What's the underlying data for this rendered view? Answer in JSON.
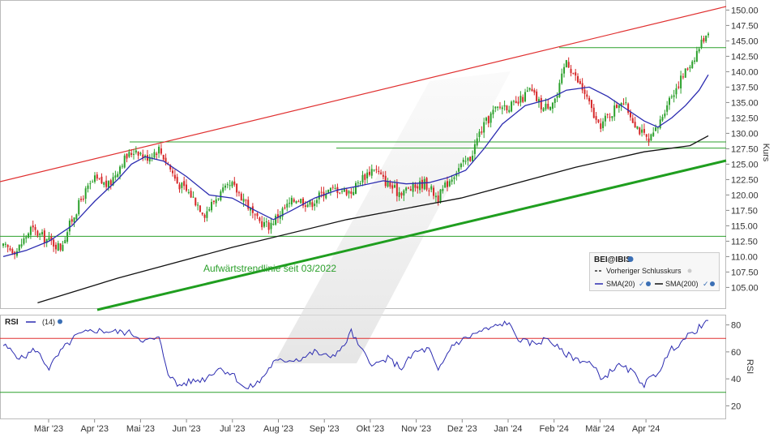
{
  "chart_data": [
    {
      "type": "candlestick",
      "title": "",
      "instrument": "BEI@IBIS",
      "ylabel": "Kurs",
      "ylim": [
        101.5,
        151.5
      ],
      "y_ticks": [
        105.0,
        107.5,
        110.0,
        112.5,
        115.0,
        117.5,
        120.0,
        122.5,
        125.0,
        127.5,
        130.0,
        132.5,
        135.0,
        137.5,
        140.0,
        142.5,
        145.0,
        147.5,
        150.0
      ],
      "x_months": [
        "Mär '23",
        "Apr '23",
        "Mai '23",
        "Jun '23",
        "Jul '23",
        "Aug '23",
        "Sep '23",
        "Okt '23",
        "Nov '23",
        "Dez '23",
        "Jan '24",
        "Feb '24",
        "Mär '24",
        "Apr '24"
      ],
      "legend": {
        "prev_close": "Vorheriger Schlusskurs",
        "sma20": "SMA(20)",
        "sma200": "SMA(200)"
      },
      "annotation": "Aufwärtstrendlinie seit 03/2022",
      "horizontal_levels": [
        113.3,
        127.6,
        128.6
      ],
      "resistance_level": 143.9,
      "close_path": [
        [
          0,
          111.5
        ],
        [
          6,
          111.0
        ],
        [
          12,
          114.5
        ],
        [
          18,
          113.0
        ],
        [
          25,
          111.5
        ],
        [
          30,
          116.0
        ],
        [
          35,
          120.0
        ],
        [
          40,
          122.5
        ],
        [
          46,
          121.5
        ],
        [
          52,
          125.5
        ],
        [
          58,
          127.5
        ],
        [
          62,
          126.0
        ],
        [
          68,
          127.5
        ],
        [
          72,
          125.0
        ],
        [
          76,
          122.0
        ],
        [
          82,
          120.0
        ],
        [
          88,
          117.0
        ],
        [
          94,
          120.0
        ],
        [
          100,
          121.5
        ],
        [
          106,
          119.0
        ],
        [
          110,
          116.0
        ],
        [
          116,
          115.0
        ],
        [
          122,
          117.5
        ],
        [
          128,
          119.5
        ],
        [
          134,
          118.5
        ],
        [
          140,
          120.5
        ],
        [
          146,
          121.0
        ],
        [
          152,
          120.5
        ],
        [
          156,
          122.5
        ],
        [
          162,
          124.5
        ],
        [
          166,
          122.5
        ],
        [
          172,
          120.5
        ],
        [
          178,
          121.0
        ],
        [
          184,
          122.0
        ],
        [
          190,
          119.5
        ],
        [
          194,
          122.0
        ],
        [
          198,
          124.0
        ],
        [
          204,
          126.0
        ],
        [
          208,
          130.0
        ],
        [
          214,
          133.5
        ],
        [
          218,
          134.5
        ],
        [
          224,
          134.5
        ],
        [
          230,
          137.0
        ],
        [
          236,
          134.0
        ],
        [
          242,
          136.0
        ],
        [
          246,
          142.0
        ],
        [
          250,
          139.0
        ],
        [
          254,
          136.5
        ],
        [
          260,
          131.0
        ],
        [
          266,
          133.5
        ],
        [
          270,
          135.5
        ],
        [
          274,
          133.0
        ],
        [
          278,
          130.5
        ],
        [
          282,
          128.5
        ],
        [
          286,
          131.0
        ],
        [
          290,
          135.0
        ],
        [
          294,
          137.5
        ],
        [
          298,
          140.0
        ],
        [
          302,
          142.5
        ],
        [
          306,
          145.5
        ],
        [
          308,
          146.8
        ]
      ],
      "sma20_path": [
        [
          0,
          110.0
        ],
        [
          10,
          111.0
        ],
        [
          20,
          112.5
        ],
        [
          30,
          115.0
        ],
        [
          40,
          119.0
        ],
        [
          50,
          122.5
        ],
        [
          56,
          125.0
        ],
        [
          62,
          126.2
        ],
        [
          70,
          125.5
        ],
        [
          80,
          123.0
        ],
        [
          90,
          120.0
        ],
        [
          100,
          119.5
        ],
        [
          110,
          117.5
        ],
        [
          118,
          116.0
        ],
        [
          126,
          117.5
        ],
        [
          136,
          119.5
        ],
        [
          146,
          120.8
        ],
        [
          156,
          121.5
        ],
        [
          166,
          122.3
        ],
        [
          176,
          121.8
        ],
        [
          186,
          122.0
        ],
        [
          194,
          122.8
        ],
        [
          202,
          124.0
        ],
        [
          210,
          127.5
        ],
        [
          218,
          131.5
        ],
        [
          228,
          134.5
        ],
        [
          238,
          135.5
        ],
        [
          246,
          137.0
        ],
        [
          256,
          137.5
        ],
        [
          264,
          136.0
        ],
        [
          272,
          134.0
        ],
        [
          280,
          132.0
        ],
        [
          286,
          131.0
        ],
        [
          292,
          132.5
        ],
        [
          298,
          134.5
        ],
        [
          304,
          137.0
        ],
        [
          308,
          139.5
        ]
      ],
      "sma200_path": [
        [
          15,
          102.5
        ],
        [
          50,
          106.5
        ],
        [
          100,
          111.5
        ],
        [
          150,
          116.0
        ],
        [
          200,
          119.5
        ],
        [
          250,
          124.5
        ],
        [
          280,
          127.0
        ],
        [
          300,
          128.0
        ],
        [
          308,
          129.6
        ]
      ]
    },
    {
      "type": "line",
      "title": "RSI",
      "ylabel": "RSI",
      "legend": {
        "name": "RSI",
        "param": "(14)"
      },
      "ylim": [
        10,
        87
      ],
      "y_ticks": [
        20,
        40,
        60,
        80
      ],
      "ref_lines": [
        30,
        70
      ],
      "path": [
        [
          0,
          65
        ],
        [
          8,
          55
        ],
        [
          14,
          62
        ],
        [
          20,
          48
        ],
        [
          26,
          62
        ],
        [
          32,
          72
        ],
        [
          40,
          76
        ],
        [
          48,
          75
        ],
        [
          56,
          74
        ],
        [
          62,
          68
        ],
        [
          68,
          70
        ],
        [
          72,
          45
        ],
        [
          76,
          35
        ],
        [
          82,
          38
        ],
        [
          88,
          40
        ],
        [
          94,
          48
        ],
        [
          100,
          44
        ],
        [
          106,
          32
        ],
        [
          112,
          38
        ],
        [
          118,
          52
        ],
        [
          124,
          54
        ],
        [
          130,
          55
        ],
        [
          136,
          60
        ],
        [
          142,
          56
        ],
        [
          148,
          62
        ],
        [
          152,
          75
        ],
        [
          156,
          62
        ],
        [
          162,
          50
        ],
        [
          168,
          55
        ],
        [
          174,
          48
        ],
        [
          180,
          60
        ],
        [
          186,
          62
        ],
        [
          190,
          45
        ],
        [
          196,
          65
        ],
        [
          202,
          70
        ],
        [
          208,
          75
        ],
        [
          214,
          78
        ],
        [
          220,
          82
        ],
        [
          226,
          68
        ],
        [
          232,
          66
        ],
        [
          238,
          70
        ],
        [
          244,
          60
        ],
        [
          250,
          55
        ],
        [
          256,
          52
        ],
        [
          262,
          40
        ],
        [
          268,
          50
        ],
        [
          274,
          46
        ],
        [
          280,
          36
        ],
        [
          286,
          45
        ],
        [
          292,
          62
        ],
        [
          298,
          70
        ],
        [
          304,
          78
        ],
        [
          308,
          82
        ]
      ]
    }
  ]
}
